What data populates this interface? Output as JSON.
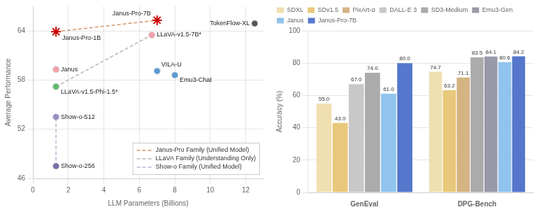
{
  "chart_data": [
    {
      "type": "scatter",
      "xlabel": "LLM Parameters (Billions)",
      "ylabel": "Average Performance",
      "series": [
        {
          "name": "Janus-Pro Family (Unified Model)",
          "type": "line",
          "line_style": "dashed",
          "color": "#D4956A",
          "x": [
            1.3,
            7.0
          ],
          "values": [
            63.9,
            65.3
          ]
        },
        {
          "name": "LLaVA Family (Understanding Only)",
          "type": "line",
          "line_style": "dashed",
          "color": "#C0B0B0",
          "x": [
            1.3,
            6.7
          ],
          "values": [
            57.2,
            63.5
          ]
        },
        {
          "name": "Show-o Family (Unified Model)",
          "type": "line",
          "line_style": "dashed",
          "color": "#C0B0D0",
          "x": [
            1.3,
            1.3
          ],
          "values": [
            47.5,
            53.5
          ]
        },
        {
          "type": "scatter",
          "marker": "star",
          "color": "#CC0000",
          "x": [
            7.0,
            1.3
          ],
          "values": [
            65.3,
            63.9
          ],
          "labels": [
            "Janus-Pro-7B",
            "Janus-Pro-1B"
          ]
        },
        {
          "type": "scatter",
          "marker": "circle",
          "colors": [
            "#F4A0A8",
            "#F4A0A8",
            "#5DBD72",
            "#5B9BD5",
            "#5B9BD5",
            "#555555",
            "#9B8EC4",
            "#7B6BB0"
          ],
          "x": [
            1.3,
            6.7,
            1.3,
            7.0,
            8.0,
            12.5,
            1.3,
            1.3
          ],
          "values": [
            59.3,
            63.5,
            57.2,
            59.1,
            58.6,
            64.9,
            53.5,
            47.5
          ],
          "labels": [
            "Janus",
            "LLaVA-v1.5-7B*",
            "LLaVA-v1.5-Phi-1.5*",
            "VILA-U",
            "Emu3-Chat",
            "TokenFlow-XL",
            "Show-o-512",
            "Show-o-256"
          ]
        }
      ],
      "xlim": [
        0,
        13
      ],
      "xticks": [
        0,
        2,
        4,
        6,
        8,
        10,
        12
      ],
      "ylim": [
        46,
        67
      ],
      "yticks": [
        46,
        52,
        58,
        64
      ],
      "grid": true,
      "legend": "lower right"
    },
    {
      "type": "bar",
      "ylabel": "Accuracy (%)",
      "categories": [
        "GenEval",
        "DPG-Bench"
      ],
      "series": [
        {
          "name": "SDXL",
          "color": "#F0DFB0",
          "values": [
            55.0,
            74.7
          ],
          "value_labels": [
            "55.0",
            "74.7"
          ]
        },
        {
          "name": "SDv1.5",
          "color": "#E8C87A",
          "values": [
            43.0,
            63.2
          ],
          "value_labels": [
            "43.0",
            "63.2"
          ]
        },
        {
          "name": "PixArt-α",
          "color": "#D4B483",
          "values": [
            null,
            71.1
          ],
          "value_labels": [
            null,
            "71.1"
          ]
        },
        {
          "name": "DALL-E 3",
          "color": "#C8C8C8",
          "values": [
            67.0,
            null
          ],
          "value_labels": [
            "67.0",
            null
          ]
        },
        {
          "name": "SD3-Medium",
          "color": "#ABABAB",
          "values": [
            74.0,
            83.5
          ],
          "value_labels": [
            "74.0",
            "83.5"
          ]
        },
        {
          "name": "Emu3-Gen",
          "color": "#9999AA",
          "values": [
            null,
            84.1
          ],
          "value_labels": [
            null,
            "84.1"
          ]
        },
        {
          "name": "Janus",
          "color": "#90C4EE",
          "values": [
            61.0,
            80.6
          ],
          "value_labels": [
            "61.0",
            "80.6"
          ]
        },
        {
          "name": "Janus-Pro-7B",
          "color": "#5577CC",
          "values": [
            80.0,
            84.2
          ],
          "value_labels": [
            "80.0",
            "84.2"
          ]
        }
      ],
      "ylim": [
        0,
        100
      ],
      "yticks": [
        0,
        20,
        40,
        60,
        80,
        100
      ],
      "grid": "y",
      "legend": "upper left",
      "data_labels": true
    }
  ]
}
